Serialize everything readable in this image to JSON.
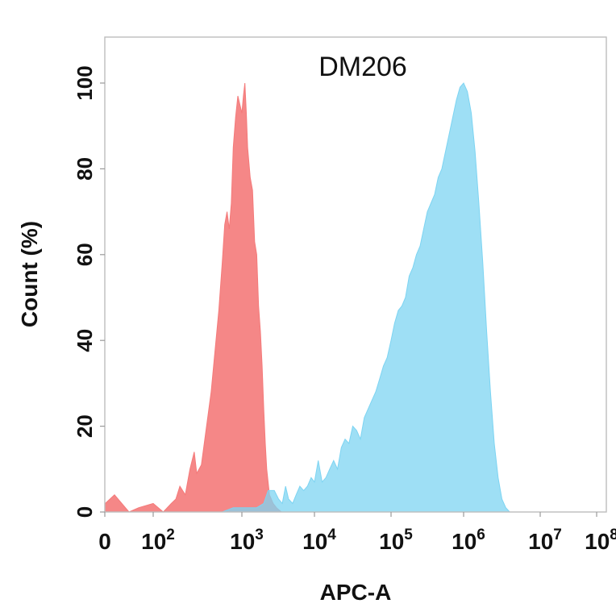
{
  "chart_data": {
    "type": "area",
    "title": "DM206",
    "xlabel": "APC-A",
    "ylabel": "Count  (%)",
    "ylim": [
      0,
      100
    ],
    "y_ticks": [
      "0",
      "20",
      "40",
      "60",
      "80",
      "100"
    ],
    "y_tick_values": [
      0,
      20,
      40,
      60,
      80,
      100
    ],
    "x_tick_labels": [
      {
        "base": "0",
        "exp": ""
      },
      {
        "base": "10",
        "exp": "2"
      },
      {
        "base": "10",
        "exp": "3"
      },
      {
        "base": "10",
        "exp": "4"
      },
      {
        "base": "10",
        "exp": "5"
      },
      {
        "base": "10",
        "exp": "6"
      },
      {
        "base": "10",
        "exp": "7"
      },
      {
        "base": "10",
        "exp": "8"
      }
    ],
    "x_tick_values": [
      0,
      100,
      1000,
      10000,
      100000,
      1000000,
      10000000,
      100000000
    ],
    "grid": false,
    "series": [
      {
        "color": "#f47a7a",
        "points": [
          [
            0,
            0
          ],
          [
            1,
            2
          ],
          [
            20,
            4
          ],
          [
            50,
            0
          ],
          [
            70,
            1
          ],
          [
            100,
            2
          ],
          [
            130,
            0
          ],
          [
            160,
            2
          ],
          [
            180,
            3
          ],
          [
            200,
            6
          ],
          [
            230,
            4
          ],
          [
            260,
            10
          ],
          [
            290,
            14
          ],
          [
            310,
            9
          ],
          [
            350,
            11
          ],
          [
            400,
            20
          ],
          [
            450,
            28
          ],
          [
            500,
            38
          ],
          [
            550,
            47
          ],
          [
            600,
            58
          ],
          [
            640,
            67
          ],
          [
            680,
            70
          ],
          [
            720,
            66
          ],
          [
            760,
            72
          ],
          [
            800,
            85
          ],
          [
            850,
            92
          ],
          [
            900,
            97
          ],
          [
            950,
            95
          ],
          [
            1000,
            93
          ],
          [
            1050,
            97
          ],
          [
            1100,
            100
          ],
          [
            1150,
            93
          ],
          [
            1200,
            85
          ],
          [
            1300,
            78
          ],
          [
            1400,
            75
          ],
          [
            1500,
            63
          ],
          [
            1600,
            60
          ],
          [
            1700,
            48
          ],
          [
            1800,
            42
          ],
          [
            1900,
            34
          ],
          [
            2000,
            24
          ],
          [
            2100,
            16
          ],
          [
            2200,
            10
          ],
          [
            2400,
            4
          ],
          [
            2700,
            2
          ],
          [
            3000,
            1
          ],
          [
            3500,
            0
          ]
        ]
      },
      {
        "color": "#7dd4f2",
        "points": [
          [
            300,
            0
          ],
          [
            600,
            0
          ],
          [
            800,
            1
          ],
          [
            1100,
            1
          ],
          [
            1600,
            1
          ],
          [
            2000,
            2
          ],
          [
            2300,
            5
          ],
          [
            2800,
            5
          ],
          [
            3200,
            3
          ],
          [
            3600,
            2
          ],
          [
            4000,
            6
          ],
          [
            4400,
            3
          ],
          [
            5000,
            2
          ],
          [
            5600,
            4
          ],
          [
            6300,
            6
          ],
          [
            7100,
            5
          ],
          [
            8000,
            6
          ],
          [
            9000,
            8
          ],
          [
            10000,
            7
          ],
          [
            11200,
            12
          ],
          [
            12600,
            7
          ],
          [
            14100,
            8
          ],
          [
            15800,
            10
          ],
          [
            17800,
            12
          ],
          [
            20000,
            10
          ],
          [
            22400,
            15
          ],
          [
            25100,
            17
          ],
          [
            28200,
            16
          ],
          [
            31600,
            20
          ],
          [
            35500,
            19
          ],
          [
            39800,
            17
          ],
          [
            44700,
            22
          ],
          [
            50100,
            24
          ],
          [
            56200,
            26
          ],
          [
            63100,
            28
          ],
          [
            70800,
            31
          ],
          [
            79400,
            34
          ],
          [
            89100,
            36
          ],
          [
            100000,
            40
          ],
          [
            112000,
            44
          ],
          [
            126000,
            47
          ],
          [
            141000,
            48
          ],
          [
            158000,
            50
          ],
          [
            178000,
            55
          ],
          [
            200000,
            57
          ],
          [
            224000,
            60
          ],
          [
            251000,
            62
          ],
          [
            282000,
            66
          ],
          [
            316000,
            70
          ],
          [
            355000,
            72
          ],
          [
            398000,
            74
          ],
          [
            447000,
            78
          ],
          [
            501000,
            80
          ],
          [
            562000,
            84
          ],
          [
            631000,
            88
          ],
          [
            708000,
            92
          ],
          [
            794000,
            96
          ],
          [
            891000,
            99
          ],
          [
            1000000,
            100
          ],
          [
            1120000,
            98
          ],
          [
            1260000,
            93
          ],
          [
            1410000,
            84
          ],
          [
            1580000,
            72
          ],
          [
            1780000,
            58
          ],
          [
            2000000,
            42
          ],
          [
            2240000,
            28
          ],
          [
            2510000,
            16
          ],
          [
            2820000,
            8
          ],
          [
            3160000,
            3
          ],
          [
            3550000,
            1
          ],
          [
            4000000,
            0
          ]
        ]
      }
    ]
  }
}
